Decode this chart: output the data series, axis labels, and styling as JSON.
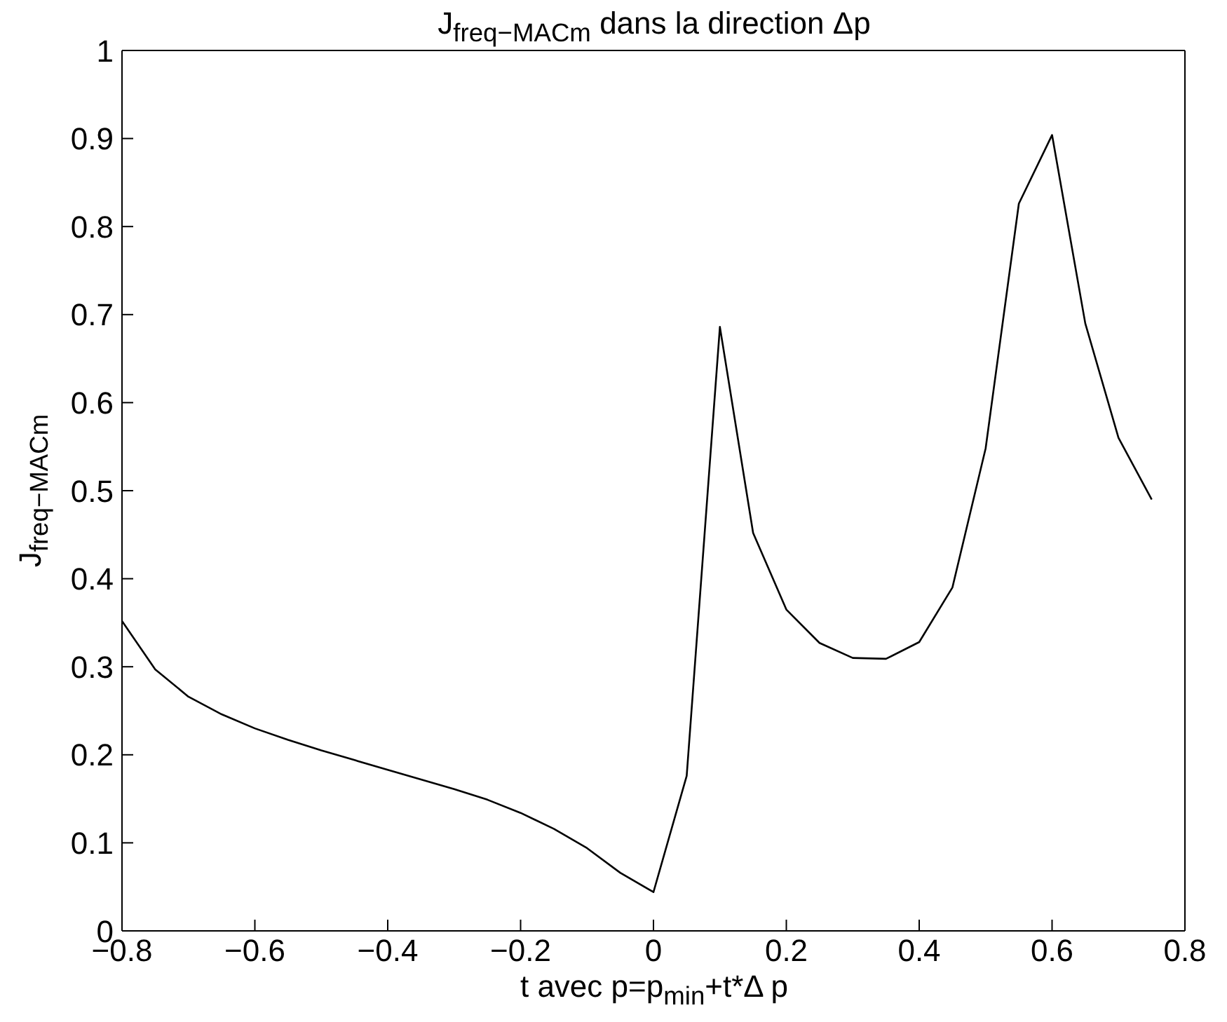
{
  "chart_data": {
    "type": "line",
    "title": "J$_{freq−MACm}$ dans la direction Δp",
    "xlabel": "t avec p=p$_{min}$+t*Δ p",
    "ylabel": "J$_{freq−MACm}$",
    "x": [
      -0.8,
      -0.75,
      -0.7,
      -0.65,
      -0.6,
      -0.55,
      -0.5,
      -0.45,
      -0.4,
      -0.35,
      -0.3,
      -0.25,
      -0.2,
      -0.15,
      -0.1,
      -0.05,
      0,
      0.05,
      0.1,
      0.15,
      0.2,
      0.25,
      0.3,
      0.35,
      0.4,
      0.45,
      0.5,
      0.55,
      0.6,
      0.65,
      0.7,
      0.75
    ],
    "series": [
      {
        "color": "#000000",
        "values": [
          0.352,
          0.297,
          0.266,
          0.246,
          0.23,
          0.217,
          0.205,
          0.194,
          0.183,
          0.172,
          0.161,
          0.149,
          0.134,
          0.116,
          0.094,
          0.066,
          0.044,
          0.176,
          0.686,
          0.452,
          0.365,
          0.327,
          0.31,
          0.309,
          0.328,
          0.39,
          0.548,
          0.826,
          0.904,
          0.69,
          0.56,
          0.49
        ]
      }
    ],
    "xlim": [
      -0.8,
      0.8
    ],
    "xticks": [
      -0.8,
      -0.6,
      -0.4,
      -0.2,
      0,
      0.2,
      0.4,
      0.6,
      0.8
    ],
    "ylim": [
      0,
      1
    ],
    "yticks": [
      0,
      0.1,
      0.2,
      0.3,
      0.4,
      0.5,
      0.6,
      0.7,
      0.8,
      0.9,
      1
    ],
    "grid": false,
    "marker": "none",
    "line_style": "solid"
  }
}
